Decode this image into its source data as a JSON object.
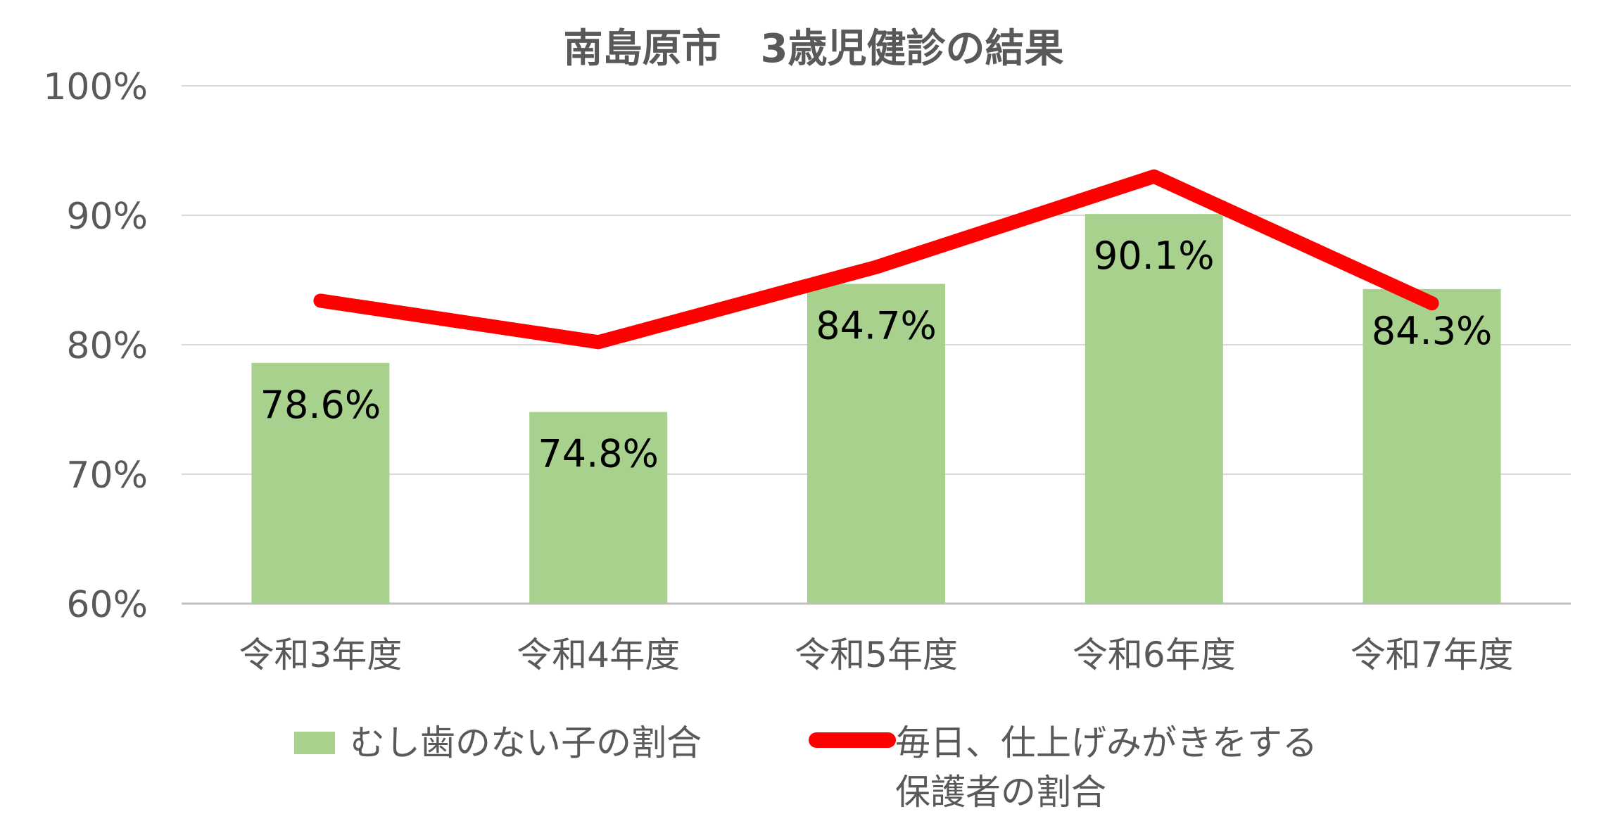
{
  "chart_data": {
    "type": "bar",
    "title": "南島原市　3歳児健診の結果",
    "categories": [
      "令和3年度",
      "令和4年度",
      "令和5年度",
      "令和6年度",
      "令和7年度"
    ],
    "ylim": [
      0.6,
      1.0
    ],
    "yticks": [
      0.6,
      0.7,
      0.8,
      0.9,
      1.0
    ],
    "ytick_labels": [
      "60%",
      "70%",
      "80%",
      "90%",
      "100%"
    ],
    "grid": true,
    "legend_position": "bottom",
    "series": [
      {
        "name": "むし歯のない子の割合",
        "type": "bar",
        "color": "#a9d18e",
        "values": [
          0.786,
          0.748,
          0.847,
          0.901,
          0.843
        ],
        "data_labels": [
          "78.6%",
          "74.8%",
          "84.7%",
          "90.1%",
          "84.3%"
        ]
      },
      {
        "name": "毎日、仕上げみがきをする保護者の割合",
        "name_lines": [
          "毎日、仕上げみがきをする",
          "保護者の割合"
        ],
        "type": "line",
        "color": "#ff0000",
        "values": [
          0.834,
          0.802,
          0.86,
          0.93,
          0.832
        ]
      }
    ]
  }
}
